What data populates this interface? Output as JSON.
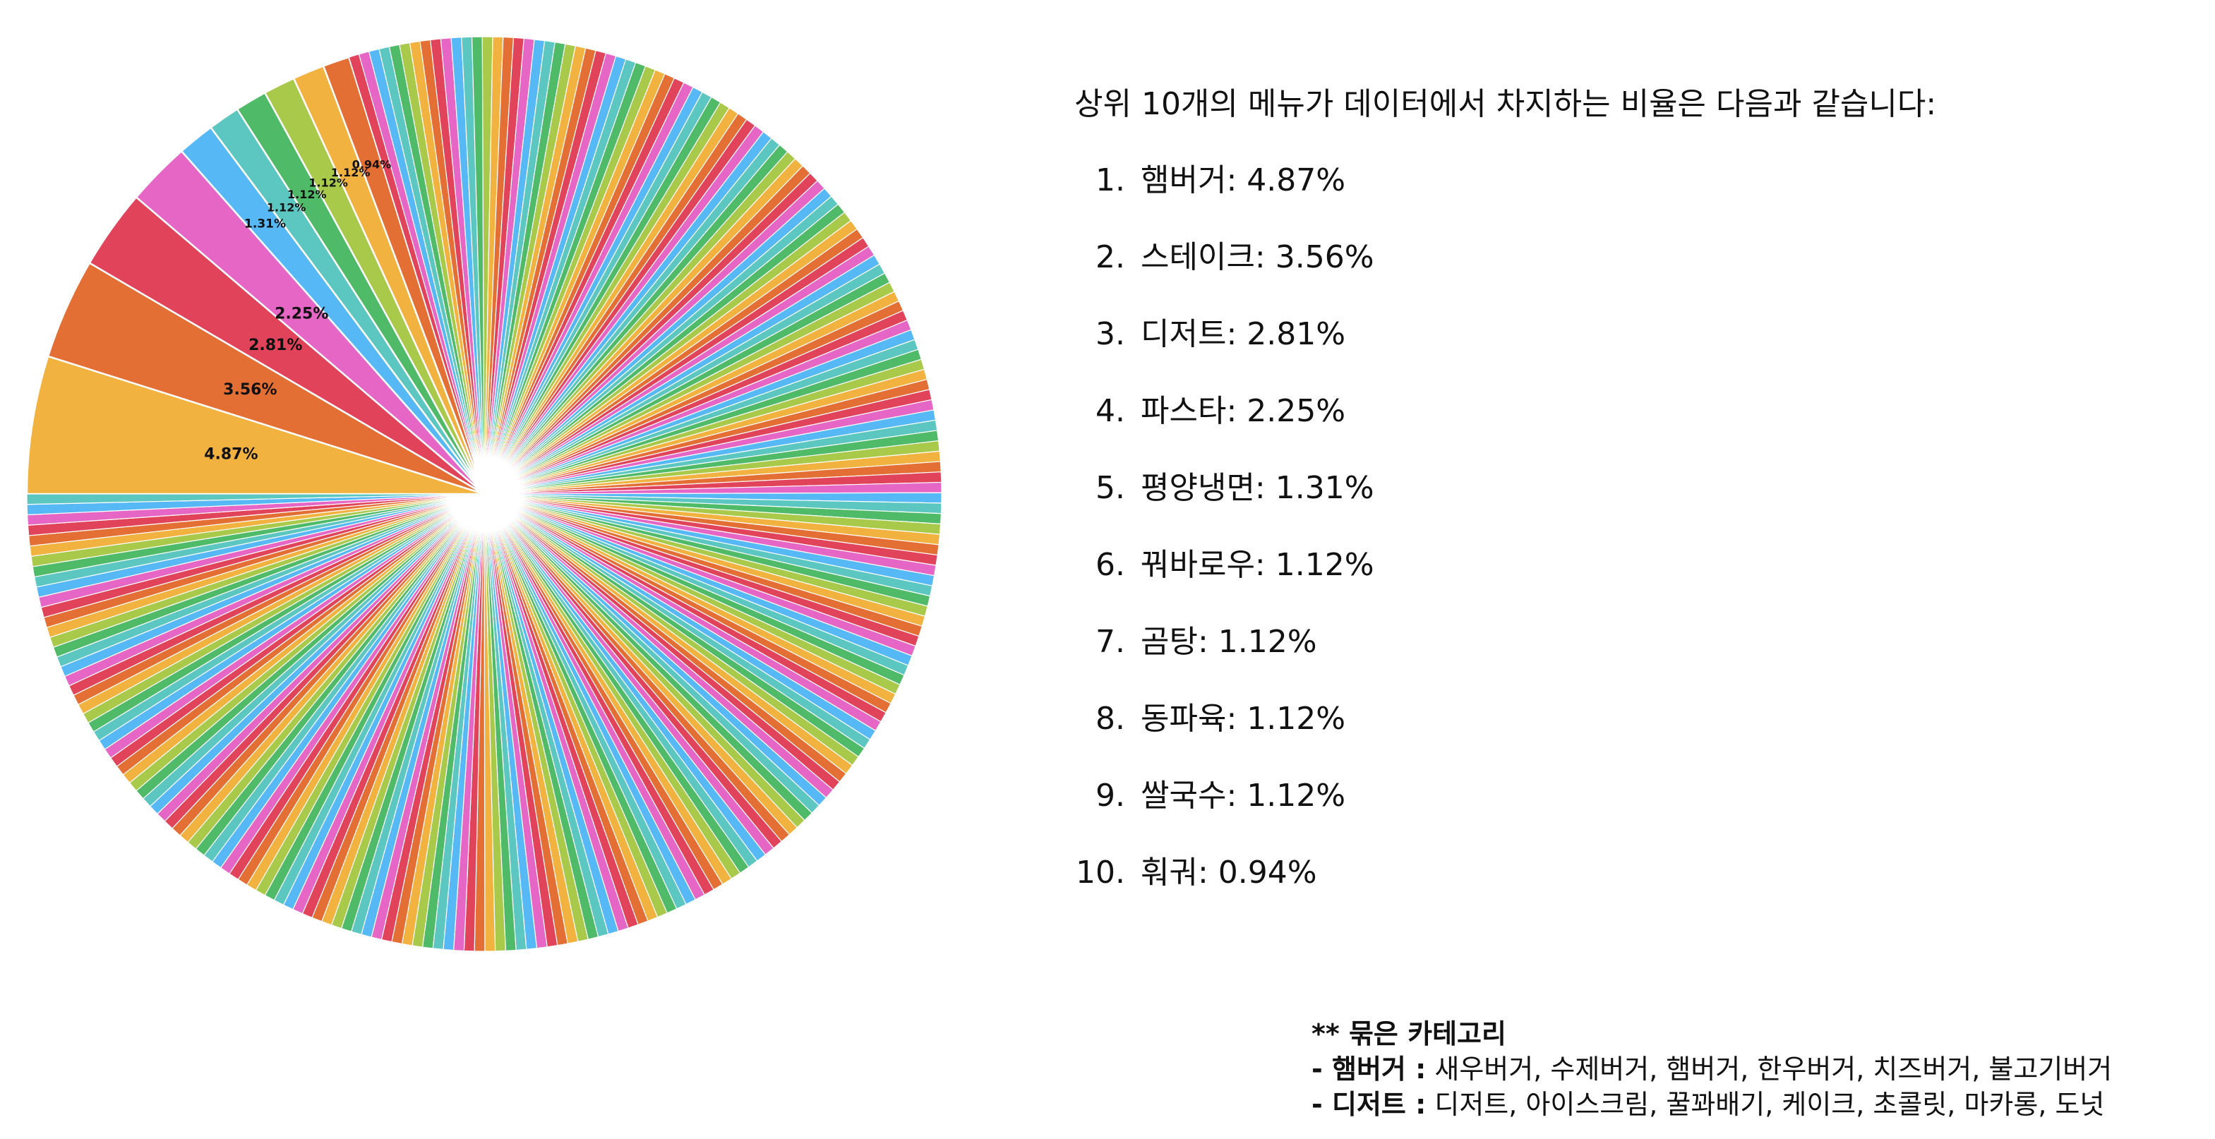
{
  "chart_data": {
    "type": "pie",
    "top_slices": [
      {
        "label": "4.87%",
        "value": 4.87,
        "color": "#f2b23f"
      },
      {
        "label": "3.56%",
        "value": 3.56,
        "color": "#e46f35"
      },
      {
        "label": "2.81%",
        "value": 2.81,
        "color": "#e0435a"
      },
      {
        "label": "2.25%",
        "value": 2.25,
        "color": "#e566c5"
      },
      {
        "label": "1.31%",
        "value": 1.31,
        "color": "#56b8f4"
      },
      {
        "label": "1.12%",
        "value": 1.12,
        "color": "#5cc7c0"
      },
      {
        "label": "1.12%",
        "value": 1.12,
        "color": "#4fba67"
      },
      {
        "label": "1.12%",
        "value": 1.12,
        "color": "#a8c94a"
      },
      {
        "label": "1.12%",
        "value": 1.12,
        "color": "#f2b23f"
      },
      {
        "label": "0.94%",
        "value": 0.94,
        "color": "#e46f35"
      }
    ],
    "remaining_slice_count": 220,
    "palette": [
      "#e0435a",
      "#e566c5",
      "#56b8f4",
      "#5cc7c0",
      "#4fba67",
      "#a8c94a",
      "#f2b23f",
      "#e46f35"
    ],
    "start_angle_deg": 180,
    "direction": "clockwise"
  },
  "summary": {
    "intro": "상위 10개의 메뉴가 데이터에서 차지하는 비율은 다음과 같습니다:",
    "items": [
      {
        "num": "1.",
        "text": "햄버거: 4.87%"
      },
      {
        "num": "2.",
        "text": "스테이크: 3.56%"
      },
      {
        "num": "3.",
        "text": "디저트: 2.81%"
      },
      {
        "num": "4.",
        "text": "파스타: 2.25%"
      },
      {
        "num": "5.",
        "text": "평양냉면: 1.31%"
      },
      {
        "num": "6.",
        "text": "꿔바로우: 1.12%"
      },
      {
        "num": "7.",
        "text": "곰탕: 1.12%"
      },
      {
        "num": "8.",
        "text": "동파육: 1.12%"
      },
      {
        "num": "9.",
        "text": "쌀국수: 1.12%"
      },
      {
        "num": "10.",
        "text": "훠궈: 0.94%"
      }
    ]
  },
  "note": {
    "title": "** 묶은 카테고리",
    "rows": [
      {
        "key": "- 햄버거 :",
        "value": " 새우버거, 수제버거, 햄버거, 한우버거, 치즈버거, 불고기버거"
      },
      {
        "key": "- 디저트 :",
        "value": " 디저트, 아이스크림, 꿀꽈배기, 케이크, 초콜릿, 마카롱, 도넛"
      }
    ]
  }
}
